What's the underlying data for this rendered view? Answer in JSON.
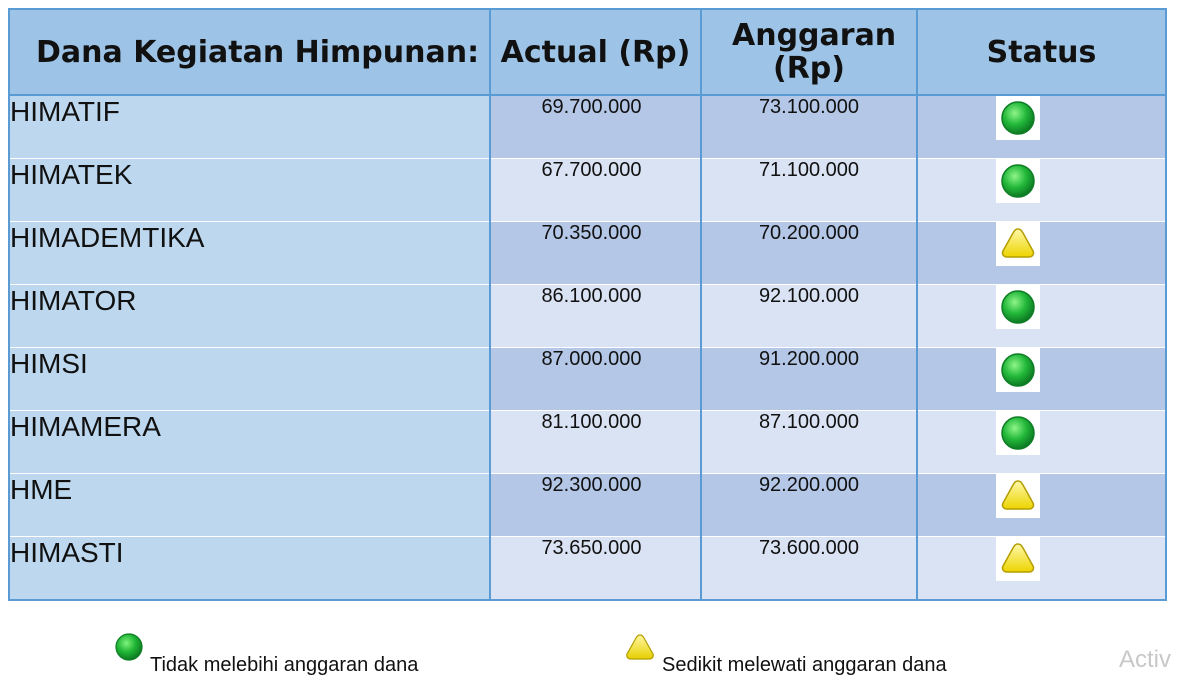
{
  "table": {
    "headers": {
      "name": "Dana Kegiatan Himpunan:",
      "actual": "Actual (Rp)",
      "budget": "Anggaran (Rp)",
      "status": "Status"
    },
    "rows": [
      {
        "name": "HIMATIF",
        "actual": "69.700.000",
        "budget": "73.100.000",
        "status": "green"
      },
      {
        "name": "HIMATEK",
        "actual": "67.700.000",
        "budget": "71.100.000",
        "status": "green"
      },
      {
        "name": "HIMADEMTIKA",
        "actual": "70.350.000",
        "budget": "70.200.000",
        "status": "yellow"
      },
      {
        "name": "HIMATOR",
        "actual": "86.100.000",
        "budget": "92.100.000",
        "status": "green"
      },
      {
        "name": "HIMSI",
        "actual": "87.000.000",
        "budget": "91.200.000",
        "status": "green"
      },
      {
        "name": "HIMAMERA",
        "actual": "81.100.000",
        "budget": "87.100.000",
        "status": "green"
      },
      {
        "name": "HME",
        "actual": "92.300.000",
        "budget": "92.200.000",
        "status": "yellow"
      },
      {
        "name": "HIMASTI",
        "actual": "73.650.000",
        "budget": "73.600.000",
        "status": "yellow"
      }
    ]
  },
  "legend": {
    "green_label": "Tidak melebihi anggaran dana",
    "yellow_label": "Sedikit melewati anggaran dana"
  },
  "watermark": "Activ",
  "colors": {
    "header_bg": "#9dc3e6",
    "name_col_bg": "#bdd7ee",
    "row_dark": "#b4c7e7",
    "row_light": "#dae3f3",
    "border": "#5b9bd5",
    "status_green": "#22b83a",
    "status_yellow": "#f2e01a"
  }
}
